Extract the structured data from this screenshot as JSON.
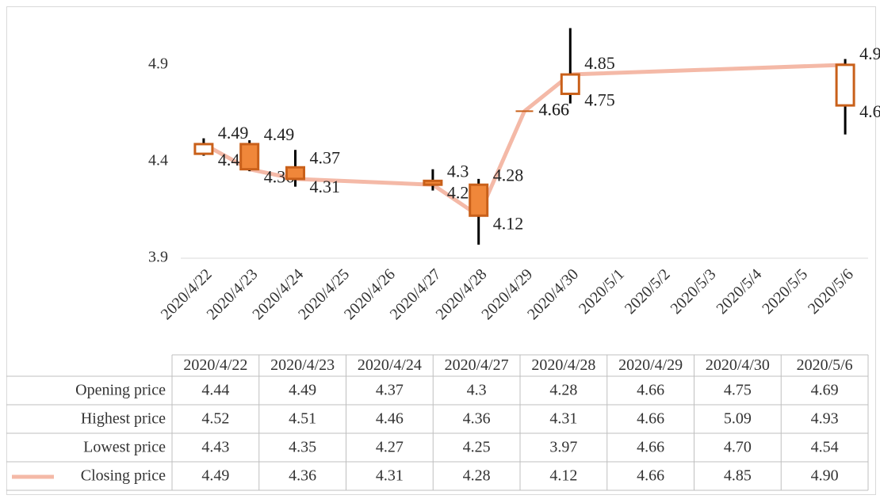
{
  "chart_data": {
    "type": "candlestick",
    "categories": [
      "2020/4/22",
      "2020/4/23",
      "2020/4/24",
      "2020/4/25",
      "2020/4/26",
      "2020/4/27",
      "2020/4/28",
      "2020/4/29",
      "2020/4/30",
      "2020/5/1",
      "2020/5/2",
      "2020/5/3",
      "2020/5/4",
      "2020/5/5",
      "2020/5/6"
    ],
    "x": [
      "2020/4/22",
      "2020/4/23",
      "2020/4/24",
      "2020/4/27",
      "2020/4/28",
      "2020/4/29",
      "2020/4/30",
      "2020/5/6"
    ],
    "series": [
      {
        "name": "Opening price",
        "values": [
          4.44,
          4.49,
          4.37,
          4.3,
          4.28,
          4.66,
          4.75,
          4.69
        ],
        "value_labels": [
          "4.44",
          "4.49",
          "4.37",
          "4.3",
          "4.28",
          "4.66",
          "4.75",
          "4.69"
        ]
      },
      {
        "name": "Highest price",
        "values": [
          4.52,
          4.51,
          4.46,
          4.36,
          4.31,
          4.66,
          5.09,
          4.93
        ],
        "value_labels": [
          "4.52",
          "4.51",
          "4.46",
          "4.36",
          "4.31",
          "4.66",
          "5.09",
          "4.93"
        ]
      },
      {
        "name": "Lowest price",
        "values": [
          4.43,
          4.35,
          4.27,
          4.25,
          3.97,
          4.66,
          4.7,
          4.54
        ],
        "value_labels": [
          "4.43",
          "4.35",
          "4.27",
          "4.25",
          "3.97",
          "4.66",
          "4.70",
          "4.54"
        ]
      },
      {
        "name": "Closing price",
        "color": "#f4b9a7",
        "values": [
          4.49,
          4.36,
          4.31,
          4.28,
          4.12,
          4.66,
          4.85,
          4.9
        ],
        "value_labels": [
          "4.49",
          "4.36",
          "4.31",
          "4.28",
          "4.12",
          "4.66",
          "4.85",
          "4.90"
        ]
      }
    ],
    "up_color": "#ffffff",
    "down_color": "#f0873a",
    "border_color": "#c9601a",
    "wick_color": "#000000",
    "ylim": [
      3.9,
      5.1
    ],
    "yticks": [
      3.9,
      4.4,
      4.9
    ],
    "grid": false
  }
}
